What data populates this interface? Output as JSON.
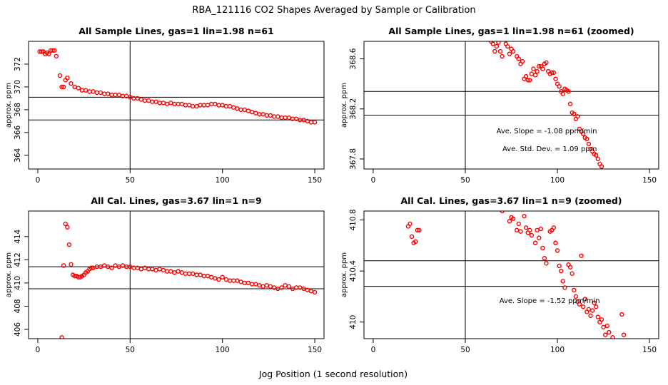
{
  "figure": {
    "title": "RBA_121116  CO2 Shapes Averaged by Sample or Calibration",
    "xlabel": "Jog Position (1 second resolution)"
  },
  "colors": {
    "points": "#ff0000",
    "axes": "#000000",
    "background": "#ffffff"
  },
  "chart_data": [
    {
      "type": "scatter",
      "title": "All Sample Lines, gas=1 lin=1.98 n=61",
      "ylabel": "approx. ppm",
      "xlim": [
        -5,
        155
      ],
      "ylim": [
        362.8,
        374
      ],
      "xticks": [
        0,
        50,
        100,
        150
      ],
      "yticks": [
        364,
        366,
        368,
        370,
        372
      ],
      "vline": 50,
      "hlines": [
        369.1,
        367.1
      ],
      "annotations": [],
      "points": [
        [
          1,
          373.1
        ],
        [
          2,
          373.1
        ],
        [
          3,
          373.1
        ],
        [
          4,
          372.9
        ],
        [
          5,
          373.0
        ],
        [
          6,
          372.9
        ],
        [
          7,
          373.2
        ],
        [
          8,
          373.2
        ],
        [
          9,
          373.2
        ],
        [
          10,
          372.7
        ],
        [
          12,
          371.0
        ],
        [
          13,
          370.0
        ],
        [
          14,
          370.0
        ],
        [
          15,
          370.6
        ],
        [
          16,
          370.8
        ],
        [
          18,
          370.3
        ],
        [
          20,
          370.0
        ],
        [
          22,
          369.9
        ],
        [
          24,
          369.7
        ],
        [
          26,
          369.7
        ],
        [
          28,
          369.6
        ],
        [
          30,
          369.6
        ],
        [
          32,
          369.5
        ],
        [
          34,
          369.5
        ],
        [
          36,
          369.4
        ],
        [
          38,
          369.4
        ],
        [
          40,
          369.3
        ],
        [
          42,
          369.3
        ],
        [
          44,
          369.3
        ],
        [
          46,
          369.2
        ],
        [
          48,
          369.2
        ],
        [
          50,
          369.1
        ],
        [
          52,
          369.0
        ],
        [
          54,
          369.0
        ],
        [
          56,
          368.9
        ],
        [
          58,
          368.8
        ],
        [
          60,
          368.8
        ],
        [
          62,
          368.7
        ],
        [
          64,
          368.7
        ],
        [
          66,
          368.6
        ],
        [
          68,
          368.6
        ],
        [
          70,
          368.5
        ],
        [
          72,
          368.6
        ],
        [
          74,
          368.5
        ],
        [
          76,
          368.5
        ],
        [
          78,
          368.5
        ],
        [
          80,
          368.4
        ],
        [
          82,
          368.4
        ],
        [
          84,
          368.3
        ],
        [
          86,
          368.3
        ],
        [
          88,
          368.4
        ],
        [
          90,
          368.4
        ],
        [
          92,
          368.4
        ],
        [
          94,
          368.5
        ],
        [
          96,
          368.5
        ],
        [
          98,
          368.4
        ],
        [
          100,
          368.4
        ],
        [
          102,
          368.3
        ],
        [
          104,
          368.3
        ],
        [
          106,
          368.2
        ],
        [
          108,
          368.1
        ],
        [
          110,
          368.0
        ],
        [
          112,
          368.0
        ],
        [
          114,
          367.9
        ],
        [
          116,
          367.8
        ],
        [
          118,
          367.7
        ],
        [
          120,
          367.6
        ],
        [
          122,
          367.6
        ],
        [
          124,
          367.5
        ],
        [
          126,
          367.5
        ],
        [
          128,
          367.4
        ],
        [
          130,
          367.4
        ],
        [
          132,
          367.3
        ],
        [
          134,
          367.3
        ],
        [
          136,
          367.3
        ],
        [
          138,
          367.2
        ],
        [
          140,
          367.2
        ],
        [
          142,
          367.1
        ],
        [
          144,
          367.1
        ],
        [
          146,
          367.0
        ],
        [
          148,
          366.9
        ],
        [
          150,
          366.9
        ]
      ]
    },
    {
      "type": "scatter",
      "title": "All Sample Lines, gas=1 lin=1.98 n=61 (zoomed)",
      "ylabel": "approx. ppm",
      "xlim": [
        -5,
        155
      ],
      "ylim": [
        367.72,
        368.74
      ],
      "xticks": [
        0,
        50,
        100,
        150
      ],
      "yticks": [
        367.8,
        368.2,
        368.6
      ],
      "vline": 50,
      "hlines": [
        368.34,
        368.15
      ],
      "annotations": [
        "Ave. Slope =  -1.08  ppm/min",
        "Ave. Std. Dev. =  1.09  ppm"
      ],
      "points": [
        [
          64,
          368.74
        ],
        [
          65,
          368.72
        ],
        [
          66,
          368.66
        ],
        [
          67,
          368.7
        ],
        [
          68,
          368.73
        ],
        [
          69,
          368.66
        ],
        [
          70,
          368.62
        ],
        [
          72,
          368.72
        ],
        [
          73,
          368.7
        ],
        [
          74,
          368.64
        ],
        [
          75,
          368.68
        ],
        [
          76,
          368.66
        ],
        [
          78,
          368.62
        ],
        [
          79,
          368.6
        ],
        [
          80,
          368.56
        ],
        [
          81,
          368.58
        ],
        [
          82,
          368.44
        ],
        [
          83,
          368.46
        ],
        [
          84,
          368.43
        ],
        [
          85,
          368.43
        ],
        [
          86,
          368.48
        ],
        [
          87,
          368.52
        ],
        [
          88,
          368.47
        ],
        [
          89,
          368.5
        ],
        [
          90,
          368.54
        ],
        [
          91,
          368.54
        ],
        [
          92,
          368.52
        ],
        [
          93,
          368.56
        ],
        [
          94,
          368.57
        ],
        [
          95,
          368.5
        ],
        [
          96,
          368.48
        ],
        [
          97,
          368.49
        ],
        [
          98,
          368.49
        ],
        [
          99,
          368.44
        ],
        [
          100,
          368.4
        ],
        [
          101,
          368.38
        ],
        [
          102,
          368.34
        ],
        [
          103,
          368.32
        ],
        [
          104,
          368.36
        ],
        [
          105,
          368.35
        ],
        [
          106,
          368.34
        ],
        [
          107,
          368.24
        ],
        [
          108,
          368.17
        ],
        [
          109,
          368.16
        ],
        [
          110,
          368.12
        ],
        [
          111,
          368.14
        ],
        [
          112,
          368.04
        ],
        [
          113,
          368.02
        ],
        [
          114,
          368.0
        ],
        [
          115,
          367.97
        ],
        [
          116,
          367.96
        ],
        [
          117,
          367.92
        ],
        [
          118,
          367.88
        ],
        [
          119,
          367.86
        ],
        [
          120,
          367.84
        ],
        [
          121,
          367.83
        ],
        [
          122,
          367.8
        ],
        [
          123,
          367.76
        ],
        [
          124,
          367.74
        ]
      ]
    },
    {
      "type": "scatter",
      "title": "All Cal. Lines, gas=3.67 lin=1 n=9",
      "ylabel": "approx. ppm",
      "xlim": [
        -5,
        155
      ],
      "ylim": [
        405.2,
        416.2
      ],
      "xticks": [
        0,
        50,
        100,
        150
      ],
      "yticks": [
        406,
        408,
        410,
        412,
        414
      ],
      "vline": 50,
      "hlines": [
        411.4,
        409.5
      ],
      "annotations": [],
      "points": [
        [
          13,
          405.3
        ],
        [
          14,
          411.5
        ],
        [
          15,
          415.1
        ],
        [
          16,
          414.8
        ],
        [
          17,
          413.3
        ],
        [
          18,
          411.6
        ],
        [
          19,
          410.7
        ],
        [
          20,
          410.6
        ],
        [
          21,
          410.6
        ],
        [
          22,
          410.5
        ],
        [
          23,
          410.5
        ],
        [
          24,
          410.6
        ],
        [
          25,
          410.7
        ],
        [
          26,
          410.9
        ],
        [
          27,
          411.0
        ],
        [
          28,
          411.2
        ],
        [
          29,
          411.3
        ],
        [
          30,
          411.3
        ],
        [
          32,
          411.4
        ],
        [
          34,
          411.4
        ],
        [
          36,
          411.5
        ],
        [
          38,
          411.4
        ],
        [
          40,
          411.3
        ],
        [
          42,
          411.5
        ],
        [
          44,
          411.4
        ],
        [
          46,
          411.5
        ],
        [
          48,
          411.4
        ],
        [
          50,
          411.4
        ],
        [
          52,
          411.3
        ],
        [
          54,
          411.3
        ],
        [
          56,
          411.2
        ],
        [
          58,
          411.3
        ],
        [
          60,
          411.2
        ],
        [
          62,
          411.2
        ],
        [
          64,
          411.1
        ],
        [
          66,
          411.2
        ],
        [
          68,
          411.1
        ],
        [
          70,
          411.0
        ],
        [
          72,
          411.0
        ],
        [
          74,
          410.9
        ],
        [
          76,
          411.0
        ],
        [
          78,
          410.9
        ],
        [
          80,
          410.8
        ],
        [
          82,
          410.8
        ],
        [
          84,
          410.8
        ],
        [
          86,
          410.7
        ],
        [
          88,
          410.7
        ],
        [
          90,
          410.6
        ],
        [
          92,
          410.6
        ],
        [
          94,
          410.5
        ],
        [
          96,
          410.4
        ],
        [
          98,
          410.3
        ],
        [
          100,
          410.5
        ],
        [
          102,
          410.3
        ],
        [
          104,
          410.2
        ],
        [
          106,
          410.2
        ],
        [
          108,
          410.2
        ],
        [
          110,
          410.1
        ],
        [
          112,
          410.0
        ],
        [
          114,
          410.0
        ],
        [
          116,
          409.9
        ],
        [
          118,
          409.9
        ],
        [
          120,
          409.8
        ],
        [
          122,
          409.7
        ],
        [
          124,
          409.8
        ],
        [
          126,
          409.7
        ],
        [
          128,
          409.6
        ],
        [
          130,
          409.5
        ],
        [
          132,
          409.6
        ],
        [
          134,
          409.8
        ],
        [
          136,
          409.7
        ],
        [
          138,
          409.5
        ],
        [
          140,
          409.6
        ],
        [
          142,
          409.6
        ],
        [
          144,
          409.5
        ],
        [
          146,
          409.4
        ],
        [
          148,
          409.3
        ],
        [
          150,
          409.2
        ]
      ]
    },
    {
      "type": "scatter",
      "title": "All Cal. Lines, gas=3.67 lin=1 n=9 (zoomed)",
      "ylabel": "approx. ppm",
      "xlim": [
        -5,
        155
      ],
      "ylim": [
        409.87,
        410.87
      ],
      "xticks": [
        0,
        50,
        100,
        150
      ],
      "yticks": [
        410.0,
        410.4,
        410.8
      ],
      "vline": 50,
      "hlines": [
        410.48,
        410.28
      ],
      "annotations": [
        "Ave. Slope =  -1.52  ppm/min"
      ],
      "points": [
        [
          19,
          410.75
        ],
        [
          20,
          410.77
        ],
        [
          21,
          410.67
        ],
        [
          22,
          410.62
        ],
        [
          23,
          410.63
        ],
        [
          24,
          410.72
        ],
        [
          25,
          410.72
        ],
        [
          70,
          410.87
        ],
        [
          74,
          410.79
        ],
        [
          75,
          410.82
        ],
        [
          76,
          410.81
        ],
        [
          78,
          410.72
        ],
        [
          79,
          410.77
        ],
        [
          80,
          410.71
        ],
        [
          82,
          410.83
        ],
        [
          83,
          410.74
        ],
        [
          84,
          410.7
        ],
        [
          85,
          410.72
        ],
        [
          86,
          410.68
        ],
        [
          88,
          410.62
        ],
        [
          89,
          410.72
        ],
        [
          90,
          410.66
        ],
        [
          91,
          410.73
        ],
        [
          92,
          410.58
        ],
        [
          93,
          410.5
        ],
        [
          94,
          410.46
        ],
        [
          96,
          410.71
        ],
        [
          97,
          410.72
        ],
        [
          98,
          410.74
        ],
        [
          99,
          410.62
        ],
        [
          100,
          410.56
        ],
        [
          101,
          410.44
        ],
        [
          102,
          410.4
        ],
        [
          103,
          410.32
        ],
        [
          104,
          410.27
        ],
        [
          106,
          410.45
        ],
        [
          107,
          410.43
        ],
        [
          108,
          410.38
        ],
        [
          109,
          410.25
        ],
        [
          110,
          410.2
        ],
        [
          111,
          410.16
        ],
        [
          112,
          410.14
        ],
        [
          113,
          410.52
        ],
        [
          114,
          410.12
        ],
        [
          115,
          410.18
        ],
        [
          116,
          410.08
        ],
        [
          117,
          410.1
        ],
        [
          118,
          410.05
        ],
        [
          119,
          410.09
        ],
        [
          120,
          410.15
        ],
        [
          121,
          410.12
        ],
        [
          122,
          410.04
        ],
        [
          123,
          410.0
        ],
        [
          124,
          410.02
        ],
        [
          125,
          409.96
        ],
        [
          126,
          409.9
        ],
        [
          127,
          409.97
        ],
        [
          128,
          409.92
        ],
        [
          130,
          409.88
        ],
        [
          135,
          410.06
        ],
        [
          136,
          409.9
        ]
      ]
    }
  ]
}
